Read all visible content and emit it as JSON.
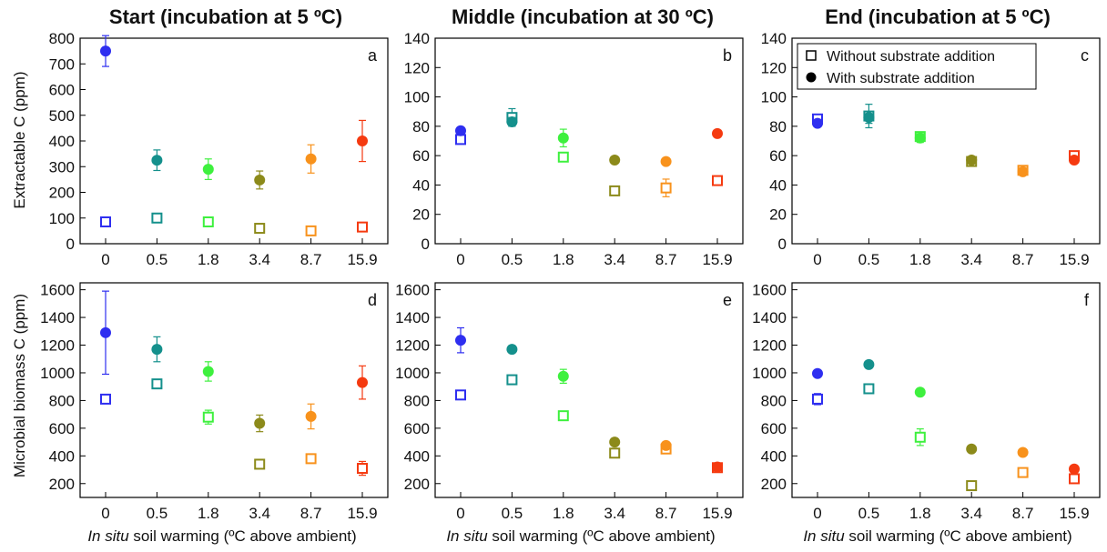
{
  "figure": {
    "column_titles": [
      "Start (incubation at 5 ºC)",
      "Middle (incubation at 30 ºC)",
      "End (incubation at 5 ºC)"
    ],
    "row_ylabels": [
      "Extractable C (ppm)",
      "Microbial biomass C (ppm)"
    ],
    "xlabel_italic": "In situ",
    "xlabel_rest": " soil warming (ºC above ambient)"
  },
  "legend": {
    "placement": "top-left of panel c",
    "open_label": "Without substrate addition",
    "filled_label": "With substrate addition"
  },
  "category_colors": [
    "#2e2ef0",
    "#14908c",
    "#3ef03e",
    "#8c8a1a",
    "#f8921c",
    "#f53a10"
  ],
  "chart_data": [
    {
      "panel": "a",
      "type": "scatter",
      "categories": [
        "0",
        "0.5",
        "1.8",
        "3.4",
        "8.7",
        "15.9"
      ],
      "ylim": [
        0,
        800
      ],
      "yticks": [
        0,
        100,
        200,
        300,
        400,
        500,
        600,
        700,
        800
      ],
      "series": [
        {
          "name": "Without substrate addition",
          "marker": "open-square",
          "values": [
            85,
            100,
            85,
            60,
            50,
            65
          ],
          "errors": [
            12,
            10,
            10,
            8,
            8,
            10
          ]
        },
        {
          "name": "With substrate addition",
          "marker": "filled-circle",
          "values": [
            750,
            325,
            290,
            248,
            330,
            400
          ],
          "errors": [
            60,
            40,
            40,
            35,
            55,
            80
          ]
        }
      ]
    },
    {
      "panel": "b",
      "type": "scatter",
      "categories": [
        "0",
        "0.5",
        "1.8",
        "3.4",
        "8.7",
        "15.9"
      ],
      "ylim": [
        0,
        140
      ],
      "yticks": [
        0,
        20,
        40,
        60,
        80,
        100,
        120,
        140
      ],
      "series": [
        {
          "name": "Without substrate addition",
          "marker": "open-square",
          "values": [
            71,
            86,
            59,
            36,
            38,
            43
          ],
          "errors": [
            2,
            6,
            2,
            2,
            6,
            2
          ]
        },
        {
          "name": "With substrate addition",
          "marker": "filled-circle",
          "values": [
            77,
            83,
            72,
            57,
            56,
            75
          ],
          "errors": [
            2,
            3,
            6,
            2,
            2,
            2
          ]
        }
      ]
    },
    {
      "panel": "c",
      "type": "scatter",
      "categories": [
        "0",
        "0.5",
        "1.8",
        "3.4",
        "8.7",
        "15.9"
      ],
      "ylim": [
        0,
        140
      ],
      "yticks": [
        0,
        20,
        40,
        60,
        80,
        100,
        120,
        140
      ],
      "series": [
        {
          "name": "Without substrate addition",
          "marker": "open-square",
          "values": [
            85,
            87,
            73,
            56,
            50,
            60
          ],
          "errors": [
            3,
            8,
            3,
            3,
            3,
            2
          ]
        },
        {
          "name": "With substrate addition",
          "marker": "filled-circle",
          "values": [
            82,
            86,
            72,
            57,
            49,
            57
          ],
          "errors": [
            2,
            4,
            3,
            2,
            2,
            2
          ]
        }
      ]
    },
    {
      "panel": "d",
      "type": "scatter",
      "categories": [
        "0",
        "0.5",
        "1.8",
        "3.4",
        "8.7",
        "15.9"
      ],
      "ylim": [
        100,
        1650
      ],
      "yticks": [
        200,
        400,
        600,
        800,
        1000,
        1200,
        1400,
        1600
      ],
      "series": [
        {
          "name": "Without substrate addition",
          "marker": "open-square",
          "values": [
            810,
            920,
            680,
            340,
            380,
            310
          ],
          "errors": [
            20,
            20,
            50,
            20,
            30,
            50
          ]
        },
        {
          "name": "With substrate addition",
          "marker": "filled-circle",
          "values": [
            1290,
            1170,
            1010,
            635,
            685,
            930
          ],
          "errors": [
            300,
            90,
            70,
            60,
            90,
            120
          ]
        }
      ]
    },
    {
      "panel": "e",
      "type": "scatter",
      "categories": [
        "0",
        "0.5",
        "1.8",
        "3.4",
        "8.7",
        "15.9"
      ],
      "ylim": [
        100,
        1650
      ],
      "yticks": [
        200,
        400,
        600,
        800,
        1000,
        1200,
        1400,
        1600
      ],
      "series": [
        {
          "name": "Without substrate addition",
          "marker": "open-square",
          "values": [
            840,
            950,
            690,
            420,
            450,
            315
          ],
          "errors": [
            20,
            20,
            20,
            15,
            30,
            15
          ]
        },
        {
          "name": "With substrate addition",
          "marker": "filled-circle",
          "values": [
            1235,
            1170,
            975,
            500,
            475,
            320
          ],
          "errors": [
            90,
            20,
            50,
            15,
            20,
            15
          ]
        }
      ]
    },
    {
      "panel": "f",
      "type": "scatter",
      "categories": [
        "0",
        "0.5",
        "1.8",
        "3.4",
        "8.7",
        "15.9"
      ],
      "ylim": [
        100,
        1650
      ],
      "yticks": [
        200,
        400,
        600,
        800,
        1000,
        1200,
        1400,
        1600
      ],
      "series": [
        {
          "name": "Without substrate addition",
          "marker": "open-square",
          "values": [
            810,
            885,
            535,
            185,
            280,
            235
          ],
          "errors": [
            40,
            20,
            60,
            15,
            20,
            20
          ]
        },
        {
          "name": "With substrate addition",
          "marker": "filled-circle",
          "values": [
            995,
            1060,
            860,
            450,
            425,
            305
          ],
          "errors": [
            15,
            15,
            15,
            15,
            15,
            15
          ]
        }
      ]
    }
  ]
}
